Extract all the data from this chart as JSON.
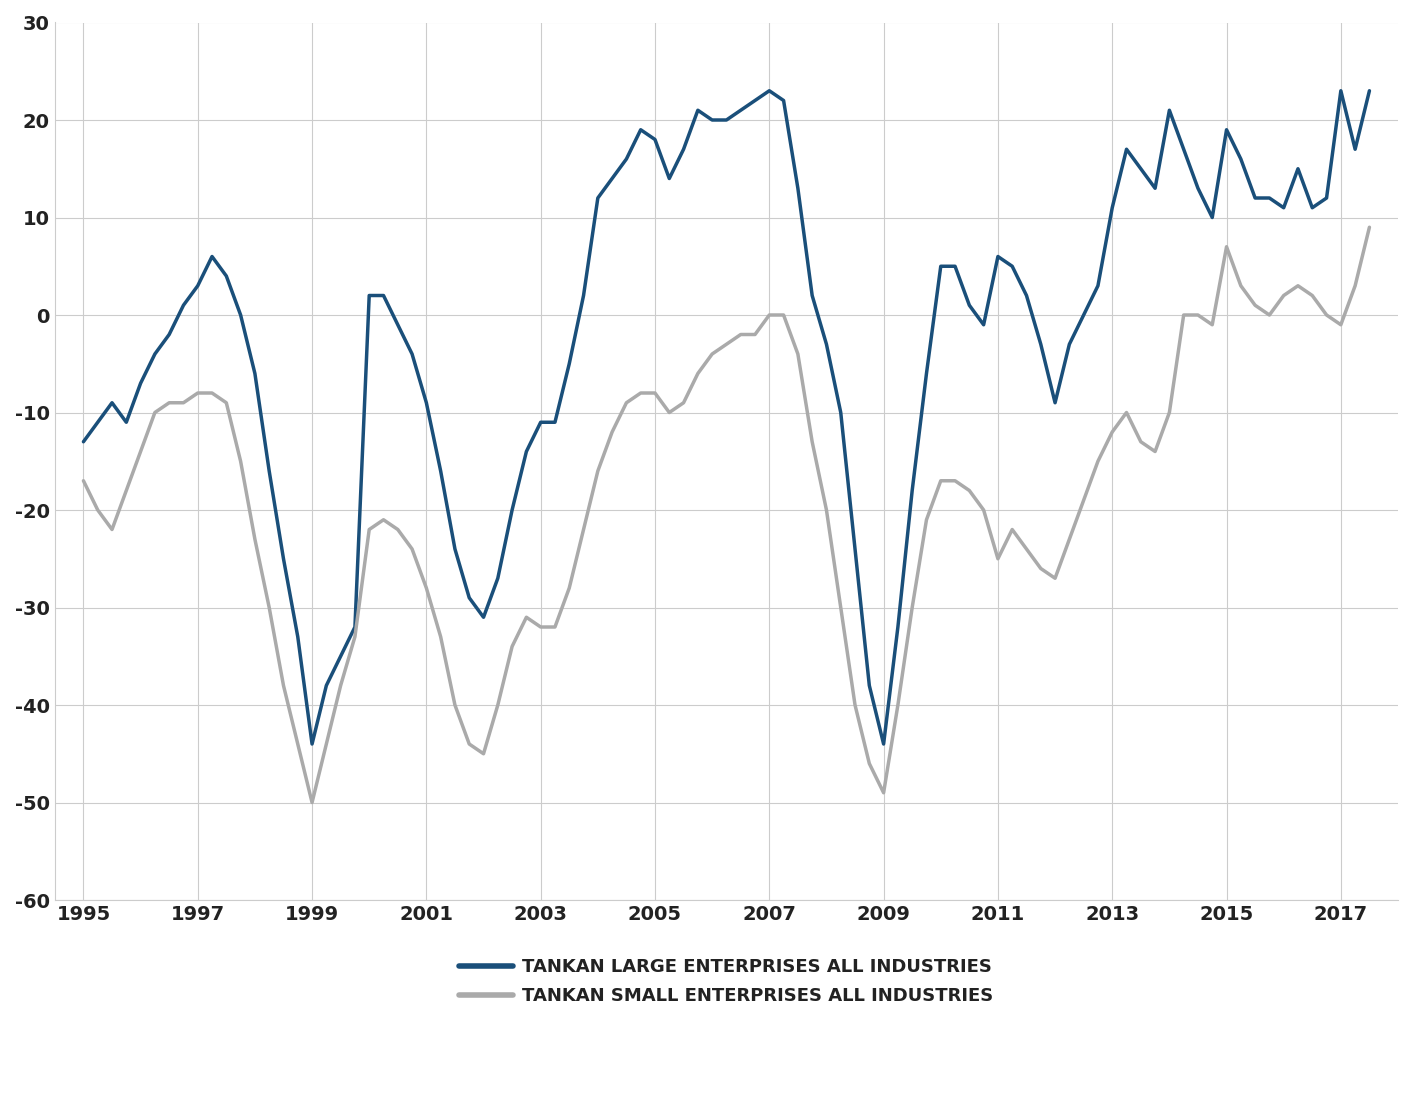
{
  "large_x": [
    1995.0,
    1995.25,
    1995.5,
    1995.75,
    1996.0,
    1996.25,
    1996.5,
    1996.75,
    1997.0,
    1997.25,
    1997.5,
    1997.75,
    1998.0,
    1998.25,
    1998.5,
    1998.75,
    1999.0,
    1999.25,
    1999.5,
    1999.75,
    2000.0,
    2000.25,
    2000.5,
    2000.75,
    2001.0,
    2001.25,
    2001.5,
    2001.75,
    2002.0,
    2002.25,
    2002.5,
    2002.75,
    2003.0,
    2003.25,
    2003.5,
    2003.75,
    2004.0,
    2004.25,
    2004.5,
    2004.75,
    2005.0,
    2005.25,
    2005.5,
    2005.75,
    2006.0,
    2006.25,
    2006.5,
    2006.75,
    2007.0,
    2007.25,
    2007.5,
    2007.75,
    2008.0,
    2008.25,
    2008.5,
    2008.75,
    2009.0,
    2009.25,
    2009.5,
    2009.75,
    2010.0,
    2010.25,
    2010.5,
    2010.75,
    2011.0,
    2011.25,
    2011.5,
    2011.75,
    2012.0,
    2012.25,
    2012.5,
    2012.75,
    2013.0,
    2013.25,
    2013.5,
    2013.75,
    2014.0,
    2014.25,
    2014.5,
    2014.75,
    2015.0,
    2015.25,
    2015.5,
    2015.75,
    2016.0,
    2016.25,
    2016.5,
    2016.75,
    2017.0,
    2017.25,
    2017.5
  ],
  "large_y": [
    -13,
    -11,
    -9,
    -11,
    -7,
    -4,
    -2,
    1,
    3,
    6,
    4,
    0,
    -6,
    -16,
    -25,
    -33,
    -44,
    -38,
    -35,
    -32,
    2,
    2,
    -1,
    -4,
    -9,
    -16,
    -24,
    -29,
    -31,
    -27,
    -20,
    -14,
    -11,
    -11,
    -5,
    2,
    12,
    14,
    16,
    19,
    18,
    14,
    17,
    21,
    20,
    20,
    21,
    22,
    23,
    22,
    13,
    2,
    -3,
    -10,
    -24,
    -38,
    -44,
    -32,
    -18,
    -6,
    5,
    5,
    1,
    -1,
    6,
    5,
    2,
    -3,
    -9,
    -3,
    0,
    3,
    11,
    17,
    15,
    13,
    21,
    17,
    13,
    10,
    19,
    16,
    12,
    12,
    11,
    15,
    11,
    12,
    23,
    17,
    23
  ],
  "small_x": [
    1995.0,
    1995.25,
    1995.5,
    1995.75,
    1996.0,
    1996.25,
    1996.5,
    1996.75,
    1997.0,
    1997.25,
    1997.5,
    1997.75,
    1998.0,
    1998.25,
    1998.5,
    1998.75,
    1999.0,
    1999.25,
    1999.5,
    1999.75,
    2000.0,
    2000.25,
    2000.5,
    2000.75,
    2001.0,
    2001.25,
    2001.5,
    2001.75,
    2002.0,
    2002.25,
    2002.5,
    2002.75,
    2003.0,
    2003.25,
    2003.5,
    2003.75,
    2004.0,
    2004.25,
    2004.5,
    2004.75,
    2005.0,
    2005.25,
    2005.5,
    2005.75,
    2006.0,
    2006.25,
    2006.5,
    2006.75,
    2007.0,
    2007.25,
    2007.5,
    2007.75,
    2008.0,
    2008.25,
    2008.5,
    2008.75,
    2009.0,
    2009.25,
    2009.5,
    2009.75,
    2010.0,
    2010.25,
    2010.5,
    2010.75,
    2011.0,
    2011.25,
    2011.5,
    2011.75,
    2012.0,
    2012.25,
    2012.5,
    2012.75,
    2013.0,
    2013.25,
    2013.5,
    2013.75,
    2014.0,
    2014.25,
    2014.5,
    2014.75,
    2015.0,
    2015.25,
    2015.5,
    2015.75,
    2016.0,
    2016.25,
    2016.5,
    2016.75,
    2017.0,
    2017.25,
    2017.5
  ],
  "small_y": [
    -17,
    -20,
    -22,
    -18,
    -14,
    -10,
    -9,
    -9,
    -8,
    -8,
    -9,
    -15,
    -23,
    -30,
    -38,
    -44,
    -50,
    -44,
    -38,
    -33,
    -22,
    -21,
    -22,
    -24,
    -28,
    -33,
    -40,
    -44,
    -45,
    -40,
    -34,
    -31,
    -32,
    -32,
    -28,
    -22,
    -16,
    -12,
    -9,
    -8,
    -8,
    -10,
    -9,
    -6,
    -4,
    -3,
    -2,
    -2,
    0,
    0,
    -4,
    -13,
    -20,
    -30,
    -40,
    -46,
    -49,
    -40,
    -30,
    -21,
    -17,
    -17,
    -18,
    -20,
    -25,
    -22,
    -24,
    -26,
    -27,
    -23,
    -19,
    -15,
    -12,
    -10,
    -13,
    -14,
    -10,
    0,
    0,
    -1,
    7,
    3,
    1,
    0,
    2,
    3,
    2,
    0,
    -1,
    3,
    9
  ],
  "large_color": "#1a4f7a",
  "small_color": "#aaaaaa",
  "large_linewidth": 2.5,
  "small_linewidth": 2.5,
  "ylim": [
    -60,
    30
  ],
  "xlim": [
    1994.5,
    2018.0
  ],
  "yticks": [
    -60,
    -50,
    -40,
    -30,
    -20,
    -10,
    0,
    10,
    20,
    30
  ],
  "xticks": [
    1995,
    1997,
    1999,
    2001,
    2003,
    2005,
    2007,
    2009,
    2011,
    2013,
    2015,
    2017
  ],
  "grid_color": "#cccccc",
  "background_color": "#ffffff",
  "legend_large": "TANKAN LARGE ENTERPRISES ALL INDUSTRIES",
  "legend_small": "TANKAN SMALL ENTERPRISES ALL INDUSTRIES",
  "tick_fontsize": 14,
  "legend_fontsize": 13
}
